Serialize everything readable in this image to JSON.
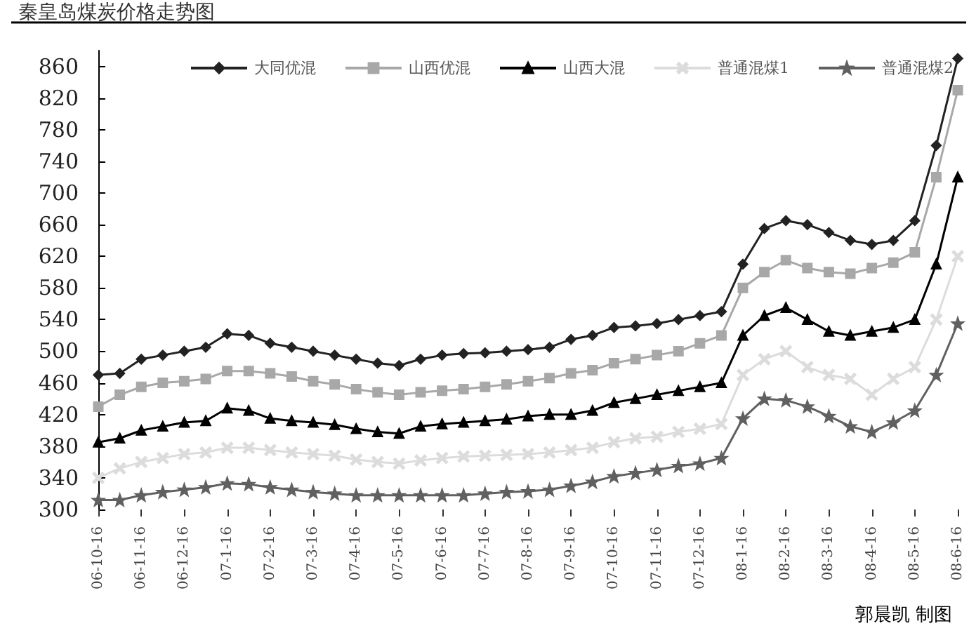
{
  "chart_data": {
    "type": "line",
    "title": "秦皇岛煤炭价格走势图",
    "annotations": [
      "郭晨凯 制图"
    ],
    "categories": [
      "06-10-16",
      null,
      "06-11-16",
      null,
      "06-12-16",
      null,
      "07-1-16",
      null,
      "07-2-16",
      null,
      "07-3-16",
      null,
      "07-4-16",
      null,
      "07-5-16",
      null,
      "07-6-16",
      null,
      "07-7-16",
      null,
      "07-8-16",
      null,
      "07-9-16",
      null,
      "07-10-16",
      null,
      "07-11-16",
      null,
      "07-12-16",
      null,
      "08-1-16",
      null,
      "08-2-16",
      null,
      "08-3-16",
      null,
      "08-4-16",
      null,
      "08-5-16",
      null,
      "08-6-16"
    ],
    "series": [
      {
        "name": "大同优混",
        "color": "#222222",
        "marker": "diamond",
        "values": [
          470,
          472,
          490,
          495,
          500,
          505,
          522,
          520,
          510,
          505,
          500,
          495,
          490,
          485,
          482,
          490,
          495,
          497,
          498,
          500,
          502,
          505,
          515,
          520,
          530,
          532,
          535,
          540,
          545,
          550,
          610,
          655,
          665,
          660,
          650,
          640,
          635,
          640,
          665,
          760,
          870
        ]
      },
      {
        "name": "山西优混",
        "color": "#a8a8a8",
        "marker": "square",
        "values": [
          430,
          445,
          455,
          460,
          462,
          465,
          475,
          475,
          472,
          468,
          462,
          458,
          452,
          448,
          445,
          448,
          450,
          452,
          455,
          458,
          462,
          466,
          472,
          476,
          485,
          490,
          495,
          500,
          510,
          520,
          580,
          600,
          615,
          605,
          600,
          598,
          605,
          612,
          625,
          720,
          830
        ]
      },
      {
        "name": "山西大混",
        "color": "#000000",
        "marker": "triangle",
        "values": [
          385,
          390,
          400,
          405,
          410,
          412,
          428,
          425,
          415,
          412,
          410,
          407,
          402,
          398,
          396,
          405,
          408,
          410,
          412,
          414,
          418,
          420,
          420,
          425,
          435,
          440,
          445,
          450,
          455,
          460,
          520,
          545,
          555,
          540,
          525,
          520,
          525,
          530,
          540,
          610,
          720
        ]
      },
      {
        "name": "普通混煤1",
        "color": "#dcdcdc",
        "marker": "cross",
        "values": [
          340,
          352,
          360,
          365,
          370,
          372,
          378,
          378,
          375,
          372,
          370,
          368,
          363,
          360,
          358,
          362,
          365,
          367,
          368,
          369,
          370,
          372,
          375,
          378,
          385,
          390,
          392,
          398,
          402,
          408,
          470,
          490,
          500,
          480,
          470,
          465,
          445,
          465,
          480,
          540,
          620
        ]
      },
      {
        "name": "普通混煤2",
        "color": "#606060",
        "marker": "star",
        "values": [
          312,
          312,
          318,
          322,
          325,
          328,
          333,
          332,
          328,
          325,
          322,
          320,
          318,
          318,
          318,
          318,
          318,
          318,
          320,
          322,
          323,
          325,
          330,
          335,
          342,
          346,
          350,
          355,
          358,
          365,
          415,
          440,
          438,
          430,
          418,
          405,
          398,
          410,
          425,
          470,
          535
        ]
      }
    ],
    "ylim": [
      300,
      880
    ],
    "yticks": [
      300,
      340,
      380,
      420,
      460,
      500,
      540,
      580,
      620,
      660,
      700,
      740,
      780,
      820,
      860
    ],
    "legend": "top",
    "grid": false
  }
}
